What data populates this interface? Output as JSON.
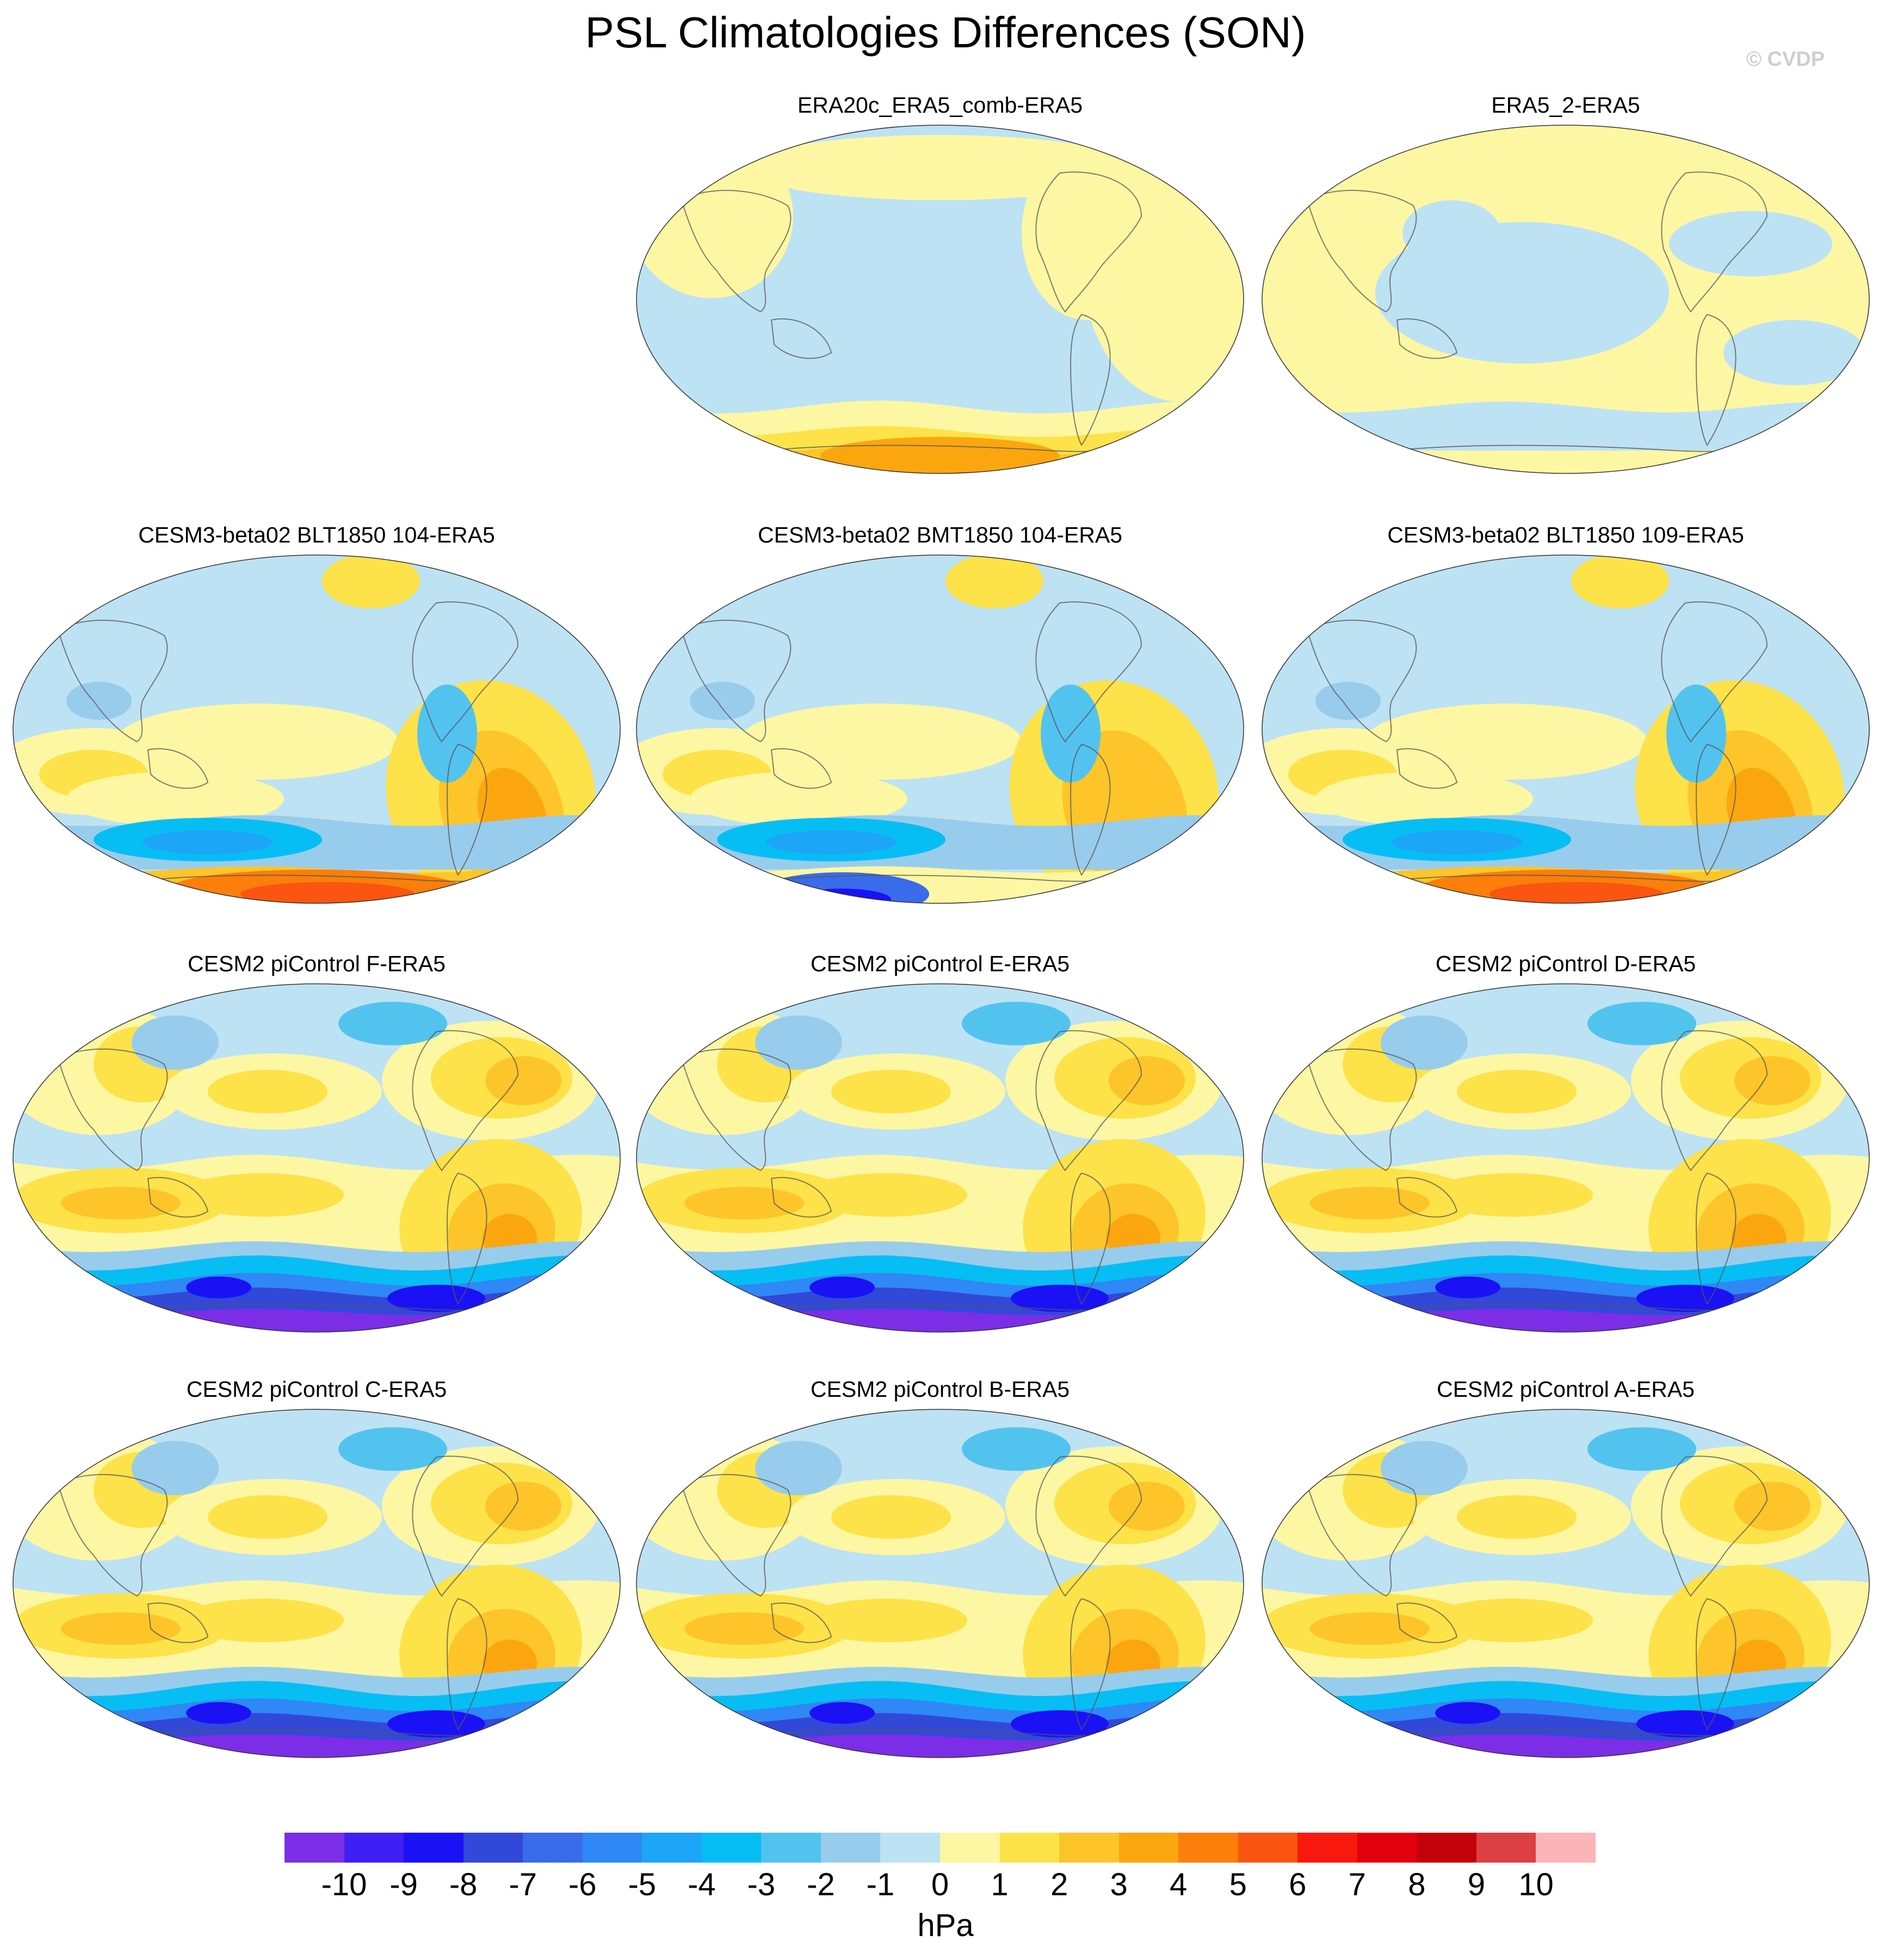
{
  "title": "PSL Climatologies Differences (SON)",
  "watermark": "© CVDP",
  "panels": [
    {
      "title": "ERA20c_ERA5_comb-ERA5",
      "pattern": "reanalysis-a"
    },
    {
      "title": "ERA5_2-ERA5",
      "pattern": "reanalysis-b"
    },
    {
      "title": "CESM3-beta02 BLT1850 104-ERA5",
      "pattern": "cesm3-warm-antarctic"
    },
    {
      "title": "CESM3-beta02 BMT1850 104-ERA5",
      "pattern": "cesm3-cold-antarctic"
    },
    {
      "title": "CESM3-beta02 BLT1850 109-ERA5",
      "pattern": "cesm3-warm-antarctic"
    },
    {
      "title": "CESM2 piControl F-ERA5",
      "pattern": "cesm2"
    },
    {
      "title": "CESM2 piControl E-ERA5",
      "pattern": "cesm2"
    },
    {
      "title": "CESM2 piControl D-ERA5",
      "pattern": "cesm2"
    },
    {
      "title": "CESM2 piControl C-ERA5",
      "pattern": "cesm2"
    },
    {
      "title": "CESM2 piControl B-ERA5",
      "pattern": "cesm2"
    },
    {
      "title": "CESM2 piControl A-ERA5",
      "pattern": "cesm2"
    }
  ],
  "colorbar": {
    "labels": [
      "-10",
      "-9",
      "-8",
      "-7",
      "-6",
      "-5",
      "-4",
      "-3",
      "-2",
      "-1",
      "0",
      "1",
      "2",
      "3",
      "4",
      "5",
      "6",
      "7",
      "8",
      "9",
      "10"
    ],
    "colors": [
      "#7b2ee6",
      "#3f1ff3",
      "#1a12f5",
      "#3248d8",
      "#3a6bea",
      "#2f88f5",
      "#1da5f7",
      "#06bef4",
      "#52c3ef",
      "#98ccec",
      "#bde2f4",
      "#fdf7a3",
      "#fde249",
      "#fdc52a",
      "#fca60f",
      "#fb7f0a",
      "#fa5511",
      "#f9180d",
      "#e2000c",
      "#c4000a",
      "#dc3f44",
      "#fcb4b8"
    ],
    "units": "hPa"
  }
}
